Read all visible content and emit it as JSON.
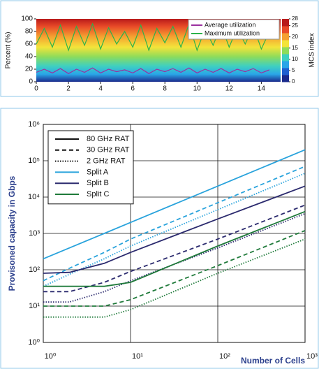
{
  "chart_data": [
    {
      "type": "line",
      "y_label": "Percent (%)",
      "x": [
        0,
        0.5,
        1,
        1.5,
        2,
        2.5,
        3,
        3.5,
        4,
        4.5,
        5,
        5.5,
        6,
        6.5,
        7,
        7.5,
        8,
        8.5,
        9,
        9.5,
        10,
        10.5,
        11,
        11.5,
        12,
        12.5,
        13,
        13.5,
        14,
        14.5
      ],
      "series": [
        {
          "name": "Average utilization",
          "color": "#9b30a0",
          "values": [
            15,
            20,
            14,
            21,
            13,
            20,
            15,
            22,
            14,
            20,
            16,
            19,
            14,
            21,
            13,
            20,
            16,
            21,
            15,
            22,
            14,
            20,
            15,
            21,
            14,
            20,
            16,
            21,
            14,
            19
          ]
        },
        {
          "name": "Maximum utilization",
          "color": "#2db34a",
          "values": [
            60,
            85,
            55,
            90,
            50,
            88,
            58,
            92,
            52,
            86,
            60,
            80,
            55,
            90,
            50,
            85,
            62,
            88,
            55,
            92,
            50,
            84,
            58,
            90,
            55,
            86,
            60,
            88,
            52,
            80
          ]
        }
      ],
      "xlim": [
        0,
        15.2
      ],
      "xticks": [
        0,
        2,
        4,
        6,
        8,
        10,
        12,
        14
      ],
      "ylim": [
        0,
        100
      ],
      "yticks": [
        0,
        20,
        40,
        60,
        80,
        100
      ],
      "legend_position": "upper right",
      "colorbar": {
        "label": "MCS index",
        "lim": [
          0,
          28
        ],
        "ticks": [
          0,
          5,
          10,
          15,
          20,
          25,
          28
        ],
        "colors": [
          "#1a2a8c",
          "#1e5fd0",
          "#2aa6e8",
          "#3fd0c0",
          "#8fdc5a",
          "#f3e43a",
          "#f5a030",
          "#e84a28",
          "#b81a1a"
        ]
      }
    },
    {
      "type": "line",
      "log_scale": true,
      "grid": true,
      "y_label": "Provisoned capacity in Gbps",
      "x_label": "Number of Cells",
      "x": [
        1,
        2,
        5,
        10,
        100,
        1000
      ],
      "series": [
        {
          "color": "#29a3dc",
          "dash": "solid",
          "values": [
            200,
            400,
            1000,
            2000,
            20000,
            200000
          ]
        },
        {
          "color": "#29a3dc",
          "dash": "dashed",
          "values": [
            50,
            110,
            300,
            700,
            7000,
            70000
          ]
        },
        {
          "color": "#29a3dc",
          "dash": "dotted",
          "values": [
            35,
            75,
            200,
            450,
            4500,
            45000
          ]
        },
        {
          "color": "#2b2a6e",
          "dash": "solid",
          "values": [
            80,
            85,
            150,
            300,
            2500,
            20000
          ]
        },
        {
          "color": "#2b2a6e",
          "dash": "dashed",
          "values": [
            25,
            25,
            45,
            90,
            700,
            6000
          ]
        },
        {
          "color": "#2b2a6e",
          "dash": "dotted",
          "values": [
            13,
            13,
            25,
            50,
            400,
            3500
          ]
        },
        {
          "color": "#1f7a3a",
          "dash": "solid",
          "values": [
            35,
            35,
            35,
            45,
            450,
            4000
          ]
        },
        {
          "color": "#1f7a3a",
          "dash": "dashed",
          "values": [
            10,
            10,
            10,
            15,
            130,
            1200
          ]
        },
        {
          "color": "#1f7a3a",
          "dash": "dotted",
          "values": [
            5,
            5,
            5,
            8,
            80,
            700
          ]
        }
      ],
      "xlim": [
        1,
        1000
      ],
      "xticks": [
        {
          "value": 1,
          "label": "10⁰"
        },
        {
          "value": 10,
          "label": "10¹"
        },
        {
          "value": 100,
          "label": "10²"
        },
        {
          "value": 1000,
          "label": "10³"
        }
      ],
      "ylim": [
        1,
        1000000
      ],
      "yticks": [
        {
          "value": 1,
          "label": "10⁰"
        },
        {
          "value": 10,
          "label": "10¹"
        },
        {
          "value": 100,
          "label": "10²"
        },
        {
          "value": 1000,
          "label": "10³"
        },
        {
          "value": 10000,
          "label": "10⁴"
        },
        {
          "value": 100000,
          "label": "10⁵"
        },
        {
          "value": 1000000,
          "label": "10⁶"
        }
      ],
      "legend": {
        "position": "upper left",
        "entries": [
          {
            "label": "80 GHz RAT",
            "color": "#111111",
            "dash": "solid"
          },
          {
            "label": "30 GHz RAT",
            "color": "#111111",
            "dash": "dashed"
          },
          {
            "label": "2 GHz RAT",
            "color": "#111111",
            "dash": "dotted"
          },
          {
            "label": "Split A",
            "color": "#29a3dc",
            "dash": "solid"
          },
          {
            "label": "Split B",
            "color": "#2b2a6e",
            "dash": "solid"
          },
          {
            "label": "Split C",
            "color": "#1f7a3a",
            "dash": "solid"
          }
        ]
      }
    }
  ]
}
